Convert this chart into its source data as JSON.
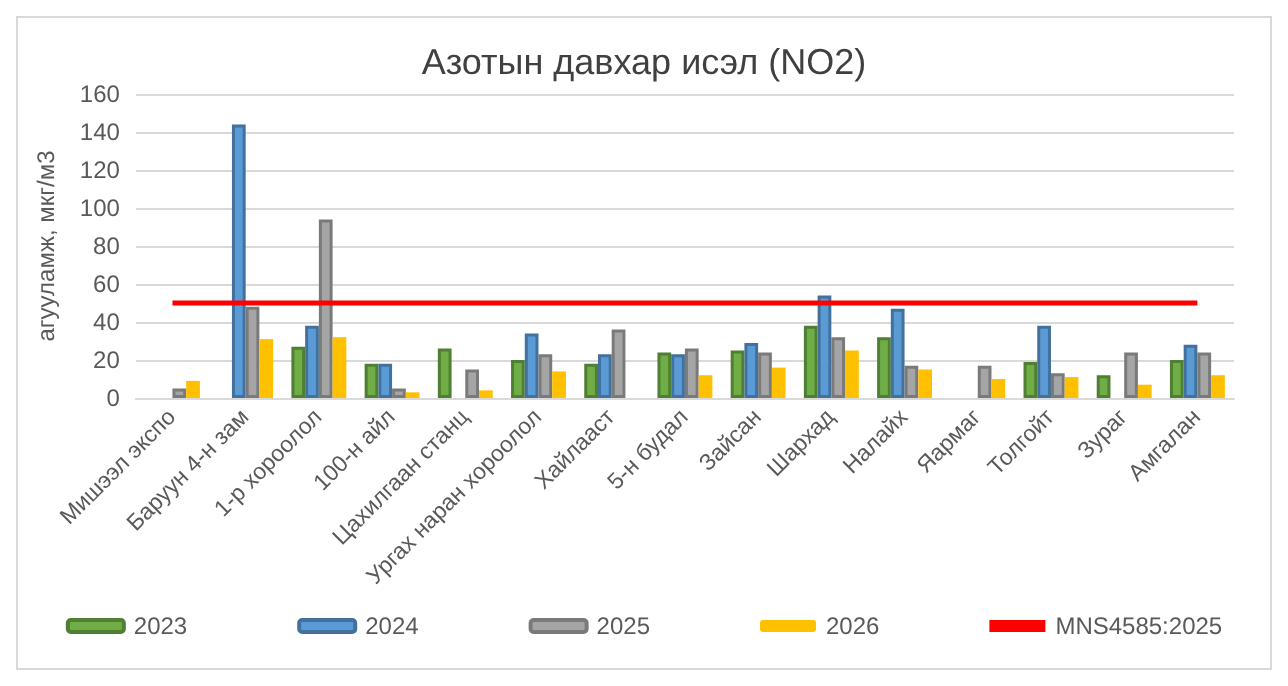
{
  "chart_data": {
    "type": "bar",
    "title": "Азотын давхар исэл (NO2)",
    "ylabel": "агууламж, мкг/м3",
    "categories": [
      "Мишээл экспо",
      "Баруун 4-н зам",
      "1-р хороолол",
      "100-н айл",
      "Цахилгаан станц",
      "Ургах наран хороолол",
      "Хайлааст",
      "5-н будал",
      "Зайсан",
      "Шархад",
      "Налайх",
      "Яармаг",
      "Толгойт",
      "Зураг",
      "Амгалан"
    ],
    "series": [
      {
        "name": "2023",
        "color": "#70ad47",
        "values": [
          null,
          null,
          27,
          18,
          26,
          20,
          18,
          24,
          25,
          38,
          32,
          null,
          19,
          12,
          20
        ]
      },
      {
        "name": "2024",
        "color": "#5b9bd5",
        "values": [
          null,
          144,
          38,
          18,
          null,
          34,
          23,
          23,
          29,
          54,
          47,
          null,
          38,
          null,
          28
        ]
      },
      {
        "name": "2025",
        "color": "#a5a5a5",
        "values": [
          5,
          48,
          94,
          5,
          15,
          23,
          36,
          26,
          24,
          32,
          17,
          17,
          13,
          24,
          24
        ]
      },
      {
        "name": "2026",
        "color": "#ffc000",
        "values": [
          9,
          31,
          32,
          3,
          4,
          14,
          null,
          12,
          16,
          25,
          15,
          10,
          11,
          7,
          12
        ]
      },
      {
        "name": "MNS4585:2025",
        "type": "line",
        "color": "#ff0000",
        "marker": "none",
        "values": [
          50,
          50,
          50,
          50,
          50,
          50,
          50,
          50,
          50,
          50,
          50,
          50,
          50,
          50,
          50
        ]
      }
    ],
    "ylim": [
      0,
      160
    ],
    "yticks": [
      0,
      20,
      40,
      60,
      80,
      100,
      120,
      140,
      160
    ],
    "grid": "y",
    "legend": "bottom"
  }
}
